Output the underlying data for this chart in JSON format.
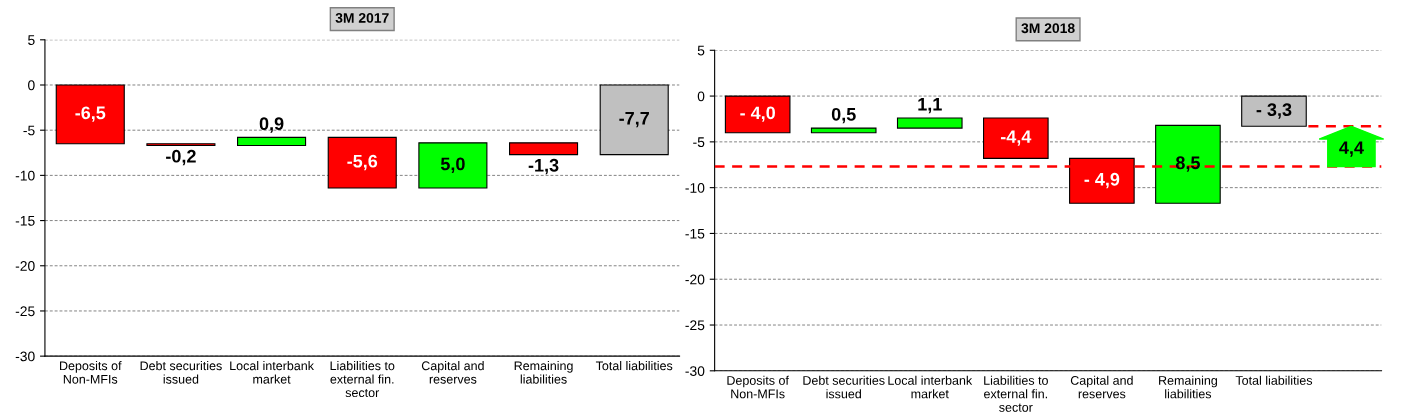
{
  "chart_data": [
    {
      "type": "bar",
      "title": "3M 2017",
      "categories": [
        "Deposits of\nNon-MFIs",
        "Debt securities\nissued",
        "Local interbank\nmarket",
        "Liabilities to\nexternal fin.\nsector",
        "Capital and\nreserves",
        "Remaining\nliabilities",
        "Total liabilities"
      ],
      "values": [
        -6.5,
        -0.2,
        0.9,
        -5.6,
        5.0,
        -1.3,
        -7.7
      ],
      "base": [
        0,
        -6.5,
        -6.7,
        -5.8,
        -11.4,
        -6.4,
        0
      ],
      "colors": [
        "#ff0000",
        "#ff0000",
        "#00ff00",
        "#ff0000",
        "#00ff00",
        "#ff0000",
        "#c0c0c0"
      ],
      "value_labels": [
        "-6,5",
        "-0,2",
        "0,9",
        "-5,6",
        "5,0",
        "-1,3",
        "-7,7"
      ],
      "ylim": [
        -30,
        5
      ],
      "yticks": [
        -30,
        -25,
        -20,
        -15,
        -10,
        -5,
        0,
        5
      ],
      "grid": "y"
    },
    {
      "type": "bar",
      "title": "3M 2018",
      "categories": [
        "Deposits of\nNon-MFIs",
        "Debt securities\nissued",
        "Local interbank\nmarket",
        "Liabilities to\nexternal fin.\nsector",
        "Capital and\nreserves",
        "Remaining\nliabilities",
        "Total liabilities"
      ],
      "values": [
        -4.0,
        0.5,
        1.1,
        -4.4,
        -4.9,
        8.5,
        -3.3
      ],
      "base": [
        0,
        -4.0,
        -3.5,
        -2.4,
        -6.8,
        -11.7,
        0
      ],
      "colors": [
        "#ff0000",
        "#00ff00",
        "#00ff00",
        "#ff0000",
        "#ff0000",
        "#00ff00",
        "#c0c0c0"
      ],
      "value_labels": [
        "- 4,0",
        "0,5",
        "1,1",
        "-4,4",
        "- 4,9",
        "8,5",
        "- 3,3"
      ],
      "ylim": [
        -30,
        5
      ],
      "yticks": [
        -30,
        -25,
        -20,
        -15,
        -10,
        -5,
        0,
        5
      ],
      "grid": "y",
      "ref_lines": [
        {
          "axis": "y",
          "value": -7.7,
          "color": "#ff0000",
          "line_style": "dashed"
        },
        {
          "axis": "y",
          "value": -3.3,
          "color": "#ff0000",
          "line_style": "dashed"
        }
      ],
      "annotations": [
        "4,4"
      ]
    }
  ]
}
